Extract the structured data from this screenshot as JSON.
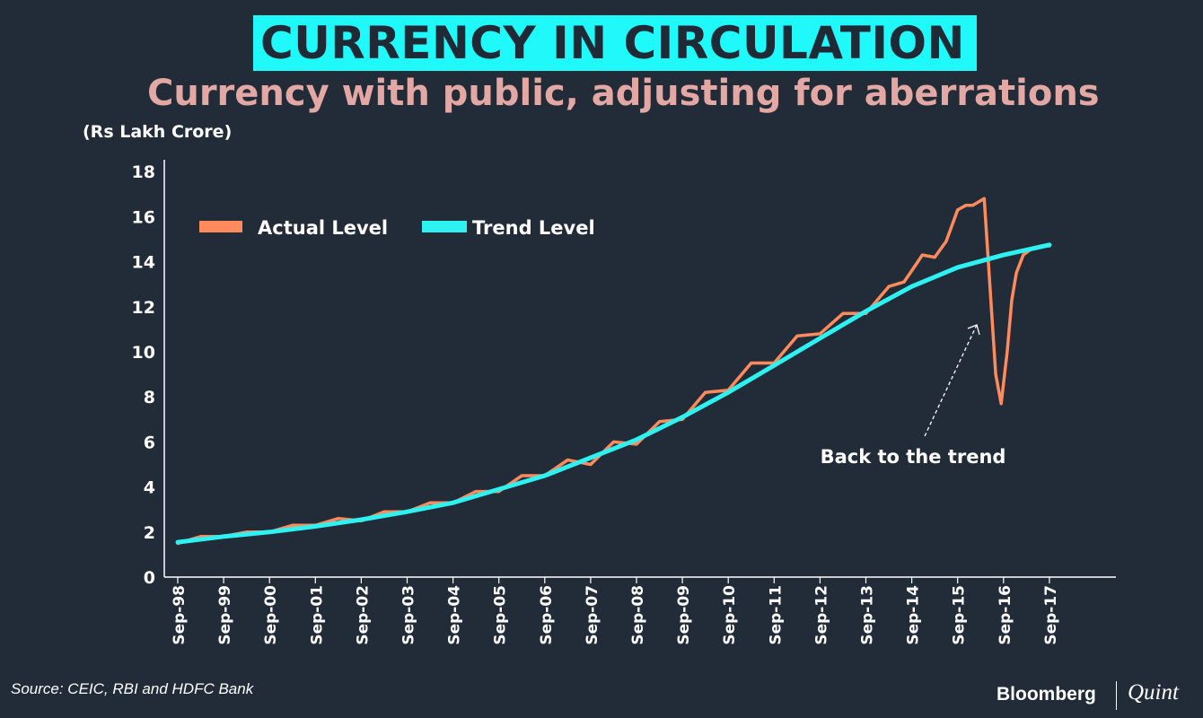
{
  "header": {
    "title": "CURRENCY IN CIRCULATION",
    "subtitle": "Currency with public, adjusting for aberrations",
    "unit_label": "(Rs Lakh Crore)"
  },
  "footer": {
    "source": "Source: CEIC, RBI and HDFC Bank",
    "brand_left": "Bloomberg",
    "brand_right": "Quint"
  },
  "colors": {
    "background": "#222c38",
    "title_box": "#1ff9f9",
    "subtitle": "#e3a8a3",
    "actual": "#ff8a5c",
    "trend": "#2ef2f2"
  },
  "chart_data": {
    "type": "line",
    "title": "CURRENCY IN CIRCULATION",
    "subtitle": "Currency with public, adjusting for aberrations",
    "ylabel": "(Rs Lakh Crore)",
    "xlabel": "",
    "ylim": [
      0,
      18
    ],
    "yticks": [
      0,
      2,
      4,
      6,
      8,
      10,
      12,
      14,
      16,
      18
    ],
    "categories": [
      "Sep-98",
      "Sep-99",
      "Sep-00",
      "Sep-01",
      "Sep-02",
      "Sep-03",
      "Sep-04",
      "Sep-05",
      "Sep-06",
      "Sep-07",
      "Sep-08",
      "Sep-09",
      "Sep-10",
      "Sep-11",
      "Sep-12",
      "Sep-13",
      "Sep-14",
      "Sep-15",
      "Sep-16",
      "Sep-17"
    ],
    "legend_position": "top-left",
    "series": [
      {
        "name": "Actual Level",
        "x": [
          1998.67,
          1999.17,
          1999.67,
          2000.17,
          2000.67,
          2001.17,
          2001.67,
          2002.17,
          2002.67,
          2003.17,
          2003.67,
          2004.17,
          2004.67,
          2005.17,
          2005.67,
          2006.17,
          2006.67,
          2007.17,
          2007.67,
          2008.17,
          2008.67,
          2009.17,
          2009.67,
          2010.17,
          2010.67,
          2011.17,
          2011.67,
          2012.17,
          2012.67,
          2013.17,
          2013.67,
          2014.17,
          2014.5,
          2014.67,
          2014.9,
          2015.17,
          2015.42,
          2015.67,
          2015.85,
          2016.0,
          2016.25,
          2016.5,
          2016.62,
          2016.75,
          2016.85,
          2016.95,
          2017.1,
          2017.3,
          2017.5,
          2017.67
        ],
        "values": [
          1.5,
          1.8,
          1.8,
          2.0,
          2.0,
          2.3,
          2.3,
          2.6,
          2.5,
          2.9,
          2.9,
          3.3,
          3.3,
          3.8,
          3.8,
          4.5,
          4.5,
          5.2,
          5.0,
          6.0,
          5.9,
          6.9,
          7.0,
          8.2,
          8.3,
          9.5,
          9.5,
          10.7,
          10.8,
          11.7,
          11.7,
          12.9,
          13.1,
          13.6,
          14.3,
          14.2,
          14.9,
          16.3,
          16.5,
          16.5,
          16.8,
          9.0,
          7.7,
          10.0,
          12.3,
          13.5,
          14.3,
          14.6,
          14.7,
          14.7
        ]
      },
      {
        "name": "Trend Level",
        "x": [
          1998.67,
          1999.67,
          2000.67,
          2001.67,
          2002.67,
          2003.67,
          2004.67,
          2005.67,
          2006.67,
          2007.67,
          2008.67,
          2009.67,
          2010.67,
          2011.67,
          2012.67,
          2013.67,
          2014.67,
          2015.67,
          2016.67,
          2017.67
        ],
        "values": [
          1.55,
          1.8,
          2.0,
          2.25,
          2.55,
          2.9,
          3.3,
          3.9,
          4.5,
          5.3,
          6.1,
          7.1,
          8.2,
          9.4,
          10.6,
          11.8,
          12.9,
          13.75,
          14.3,
          14.75
        ]
      }
    ],
    "annotations": [
      {
        "text": "Back to the trend",
        "x": 2016.0,
        "y": 5.4,
        "arrow_to": [
          2016.5,
          11.4
        ]
      }
    ]
  }
}
